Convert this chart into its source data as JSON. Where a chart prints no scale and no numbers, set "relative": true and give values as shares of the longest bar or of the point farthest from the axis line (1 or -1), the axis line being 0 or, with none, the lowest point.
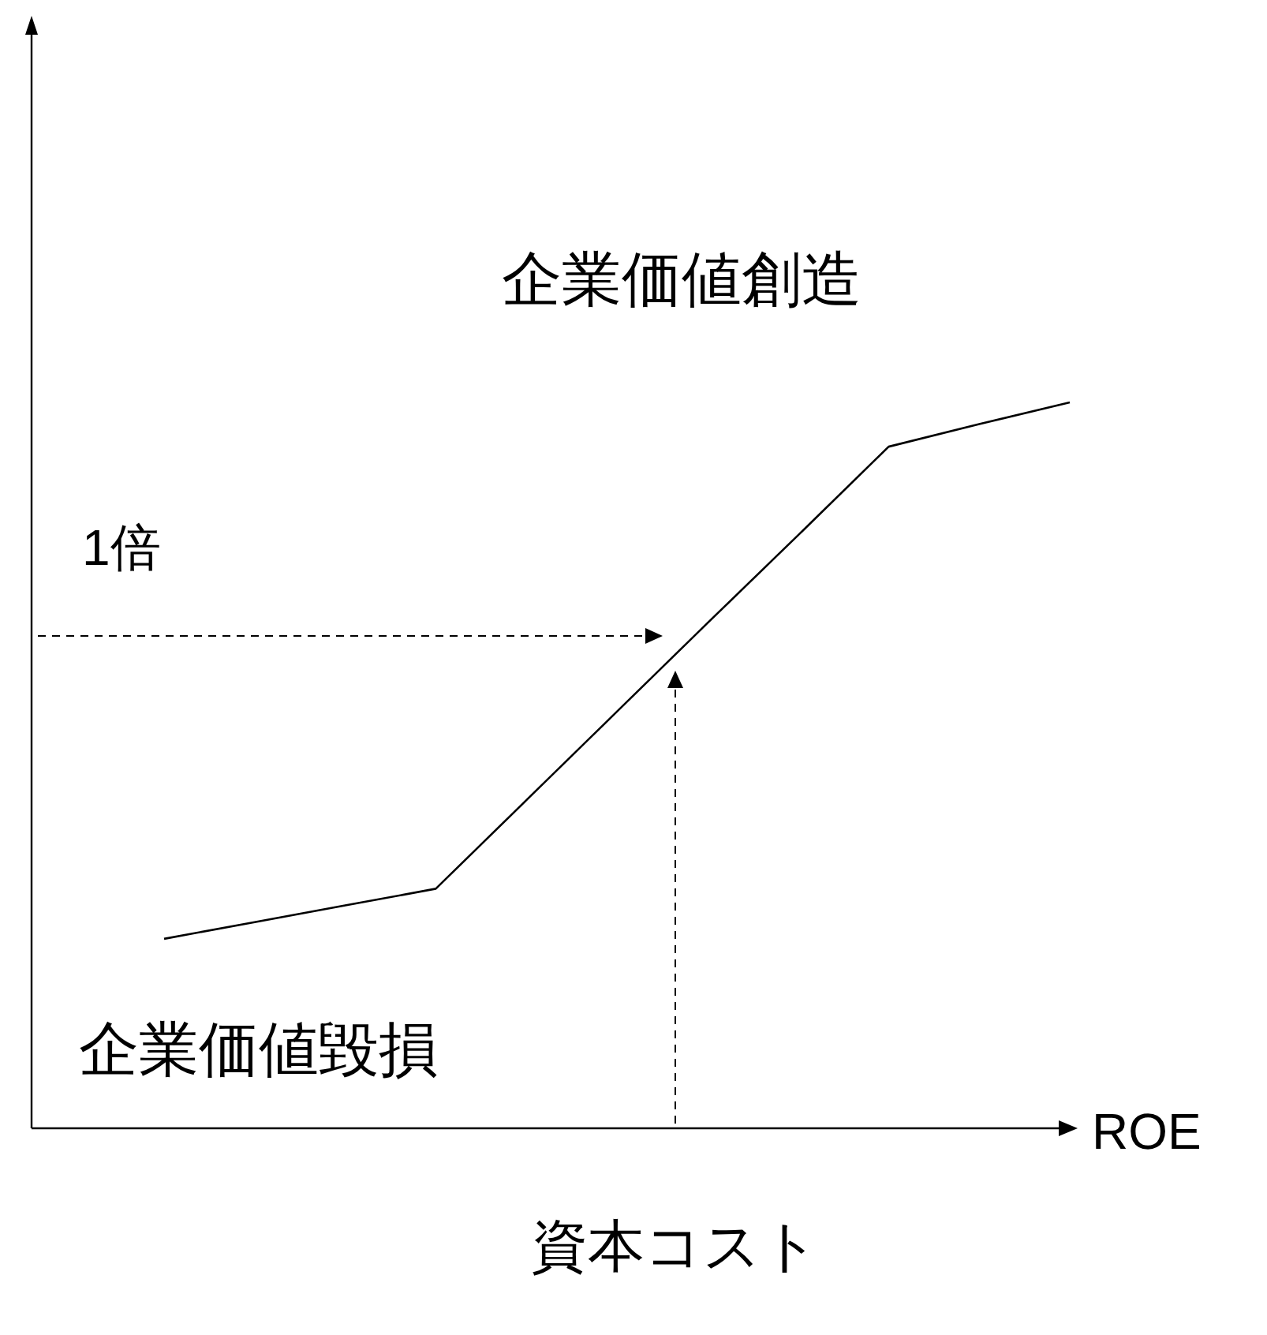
{
  "chart_data": {
    "type": "line",
    "relative": true,
    "xlabel": "ROE",
    "categories": [
      null,
      null,
      null,
      null,
      null,
      null,
      null,
      null,
      null,
      null,
      null
    ],
    "series": [
      {
        "color": "#000000",
        "values": [
          0.261,
          0.284,
          0.307,
          0.33,
          0.452,
          0.574,
          0.696,
          0.817,
          0.939,
          0.97,
          1.0
        ]
      }
    ],
    "marker": "none",
    "line_style": "solid",
    "annotations": [
      "企業価値創造",
      "1倍",
      "企業価値毀損",
      "資本コスト"
    ]
  }
}
